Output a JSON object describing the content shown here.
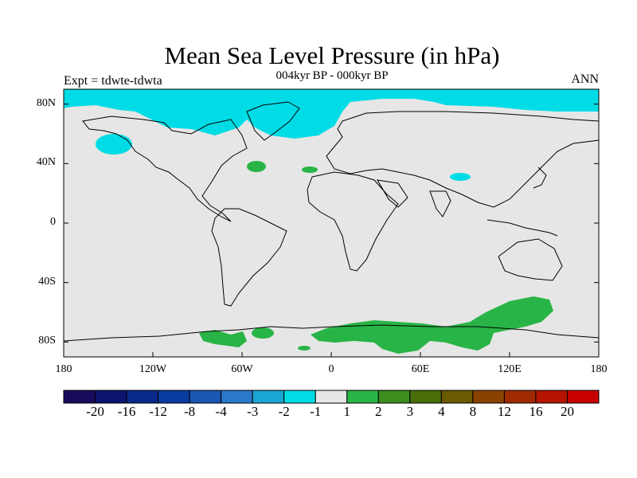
{
  "title": "Mean Sea Level Pressure (in hPa)",
  "subtitle": "004kyr BP - 000kyr BP",
  "experiment": "Expt = tdwte-tdwta",
  "season": "ANN",
  "map": {
    "projection": "cylindrical equidistant",
    "lon_range": [
      -180,
      180
    ],
    "lat_range": [
      -90,
      90
    ],
    "background_color": "#e6e6e6",
    "coastline_color": "#000000",
    "lat_ticks": [
      {
        "value": 80,
        "label": "80N"
      },
      {
        "value": 40,
        "label": "40N"
      },
      {
        "value": 0,
        "label": "0"
      },
      {
        "value": -40,
        "label": "40S"
      },
      {
        "value": -80,
        "label": "80S"
      }
    ],
    "lon_ticks": [
      {
        "value": -180,
        "label": "180"
      },
      {
        "value": -120,
        "label": "120W"
      },
      {
        "value": -60,
        "label": "60W"
      },
      {
        "value": 0,
        "label": "0"
      },
      {
        "value": 60,
        "label": "60E"
      },
      {
        "value": 120,
        "label": "120E"
      },
      {
        "value": 180,
        "label": "180"
      }
    ]
  },
  "colorbar": {
    "labels": [
      "-20",
      "-16",
      "-12",
      "-8",
      "-4",
      "-3",
      "-2",
      "-1",
      "1",
      "2",
      "3",
      "4",
      "8",
      "12",
      "16",
      "20"
    ],
    "colors": [
      "#1a0a5e",
      "#0a1470",
      "#0a2a8a",
      "#0a3ca0",
      "#1a56b4",
      "#2a78c8",
      "#1aa6d4",
      "#00dce6",
      "#e6e6e6",
      "#28b446",
      "#3c8c1e",
      "#4a6e0a",
      "#6a5a00",
      "#8a4200",
      "#a02a00",
      "#b41400",
      "#c80000"
    ]
  }
}
